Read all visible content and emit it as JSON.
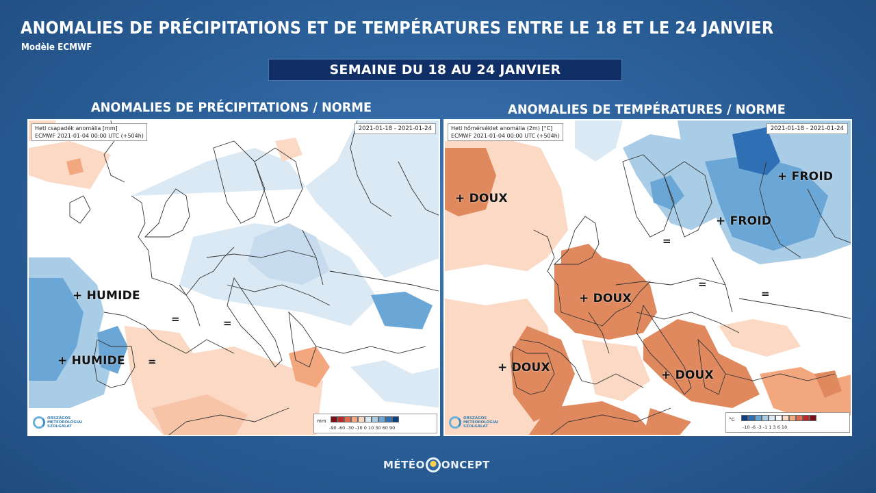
{
  "header": {
    "title": "ANOMALIES DE PRÉCIPITATIONS ET DE TEMPÉRATURES ENTRE LE 18 ET LE 24 JANVIER",
    "subtitle": "Modèle ECMWF",
    "week": "SEMAINE DU 18 AU 24 JANVIER"
  },
  "precip_map": {
    "heading": "ANOMALIES DE PRÉCIPITATIONS / NORME",
    "info_line1": "Heti csapadék anomália [mm]",
    "info_line2": "ECMWF 2021-01-04 00:00 UTC (+504h)",
    "date_range": "2021-01-18 - 2021-01-24",
    "annotations": [
      "+ HUMIDE",
      "+ HUMIDE",
      "=",
      "=",
      "="
    ],
    "legend": {
      "unit": "mm",
      "ticks": "-90  -60  -30  -10   0   10   30   60   90",
      "colors": [
        "#7a0f1a",
        "#b82a2a",
        "#e0694e",
        "#f3a77f",
        "#fbd9c4",
        "#dbe9f4",
        "#a9cde6",
        "#6aa6d6",
        "#2f6fb3",
        "#0e3f82"
      ]
    }
  },
  "temp_map": {
    "heading": "ANOMALIES DE TEMPÉRATURES / NORME",
    "info_line1": "Heti hőmérséklet anomália (2m) [°C]",
    "info_line2": "ECMWF 2021-01-04 00:00 UTC (+504h)",
    "date_range": "2021-01-18 - 2021-01-24",
    "annotations": [
      "+ DOUX",
      "+ FROID",
      "+ FROID",
      "=",
      "+ DOUX",
      "=",
      "=",
      "+ DOUX",
      "+ DOUX"
    ],
    "legend": {
      "unit": "°C",
      "ticks": "-10  -6  -3  -1     1   3   6  10",
      "colors": [
        "#0e3f82",
        "#2f6fb3",
        "#6aa6d6",
        "#a9cde6",
        "#dbe9f4",
        "#ffffff",
        "#fbd9c4",
        "#f3a77f",
        "#e0694e",
        "#b82a2a",
        "#7a0f1a"
      ]
    }
  },
  "logos": {
    "omsz": "ORSZÁGOS METEOROLÓGIAI SZOLGÁLAT",
    "footer_left": "MÉTÉO",
    "footer_right": "ONCEPT"
  }
}
